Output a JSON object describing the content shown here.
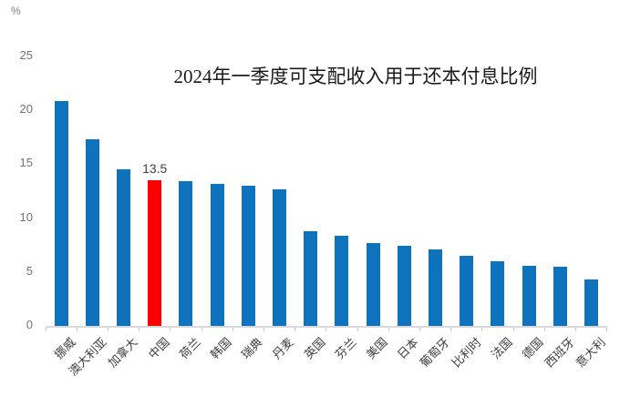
{
  "chart_data": {
    "type": "bar",
    "title": "2024年一季度可支配收入用于还本付息比例",
    "ylabel": "%",
    "xlabel": "",
    "categories": [
      "挪威",
      "澳大利亚",
      "加拿大",
      "中国",
      "荷兰",
      "韩国",
      "瑞典",
      "丹麦",
      "英国",
      "芬兰",
      "美国",
      "日本",
      "葡萄牙",
      "比利时",
      "法国",
      "德国",
      "西班牙",
      "意大利"
    ],
    "values": [
      20.9,
      17.3,
      14.5,
      13.5,
      13.4,
      13.2,
      13.0,
      12.7,
      8.8,
      8.4,
      7.7,
      7.4,
      7.1,
      6.5,
      6.0,
      5.6,
      5.5,
      4.3
    ],
    "highlight": {
      "index": 3,
      "category": "中国",
      "label": "13.5",
      "color": "#ff0000"
    },
    "bar_color": "#0e72bd",
    "ylim": [
      0,
      25
    ],
    "yticks": [
      "0",
      "5",
      "10",
      "15",
      "20",
      "25"
    ],
    "grid": false,
    "legend": "none"
  },
  "colors": {
    "bar": "#0e72bd",
    "highlight": "#ff0000",
    "axis_line": "#d9d9d9",
    "y_tick_text": "#737373",
    "x_label_text": "#3d3d3d",
    "title_text": "#1a1a1a"
  }
}
